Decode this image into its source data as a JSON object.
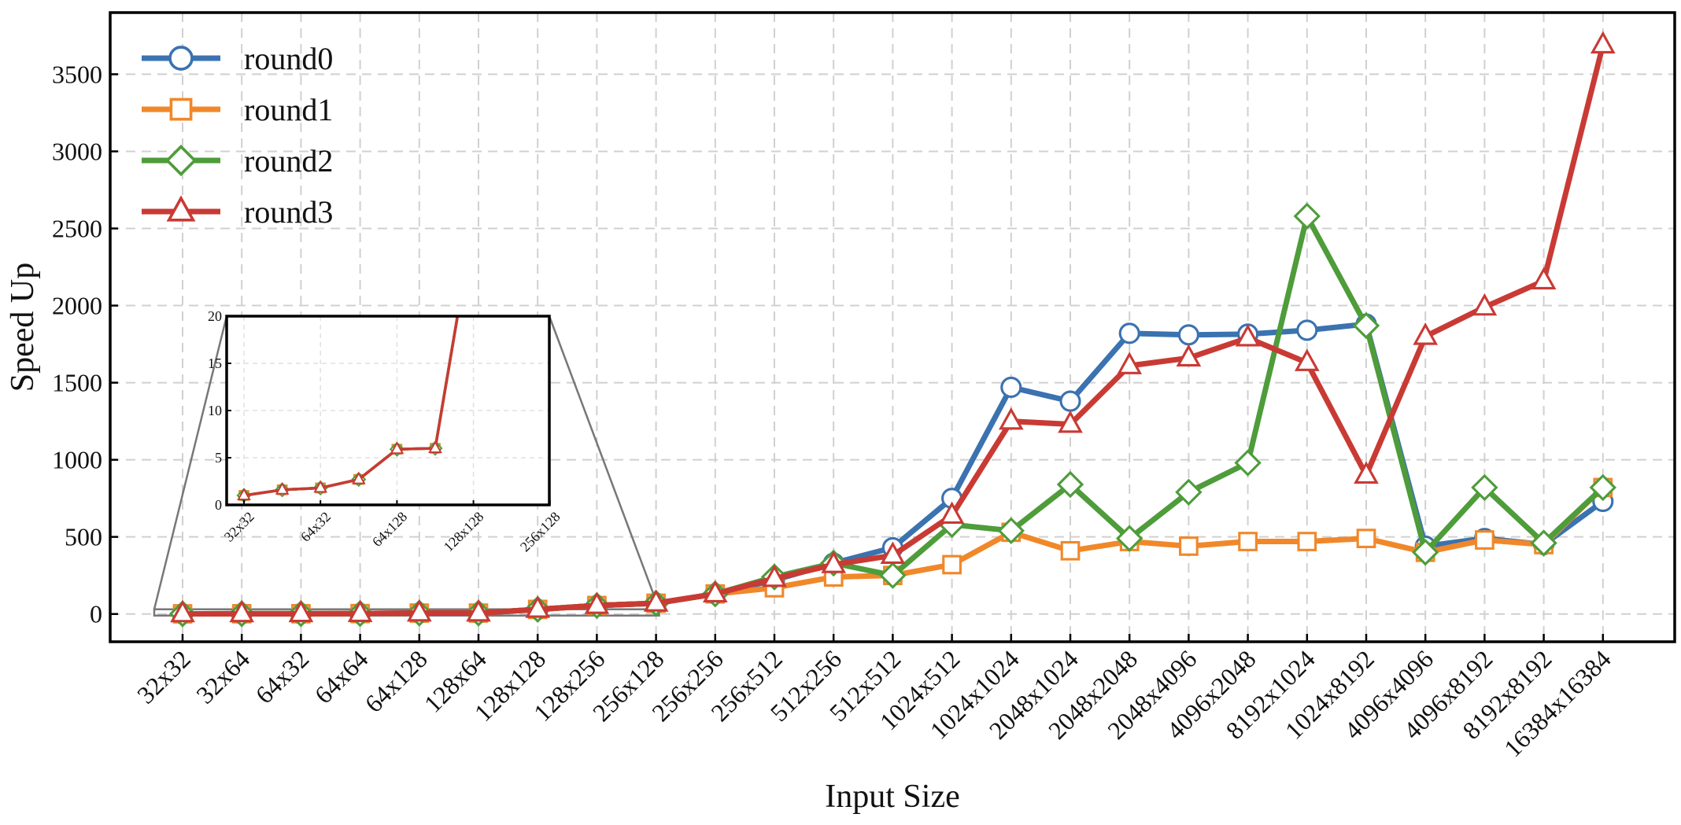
{
  "chart_data": {
    "type": "line",
    "title": "",
    "xlabel": "Input Size",
    "ylabel": "Speed Up",
    "categories": [
      "32x32",
      "32x64",
      "64x32",
      "64x64",
      "64x128",
      "128x64",
      "128x128",
      "128x256",
      "256x128",
      "256x256",
      "256x512",
      "512x256",
      "512x512",
      "1024x512",
      "1024x1024",
      "2048x1024",
      "2048x2048",
      "2048x4096",
      "4096x2048",
      "8192x1024",
      "1024x8192",
      "4096x4096",
      "4096x8192",
      "8192x8192",
      "16384x16384"
    ],
    "ylim": [
      -180,
      3900
    ],
    "yticks": [
      0,
      500,
      1000,
      1500,
      2000,
      2500,
      3000,
      3500
    ],
    "grid": true,
    "legend_position": "top-left",
    "series": [
      {
        "name": "round0",
        "marker": "circle",
        "color": "#3b72b0",
        "values": [
          1,
          1.6,
          1.8,
          2.7,
          5.9,
          6.0,
          30,
          55,
          70,
          130,
          220,
          330,
          430,
          750,
          1470,
          1380,
          1820,
          1810,
          1815,
          1840,
          1880,
          440,
          490,
          450,
          730
        ]
      },
      {
        "name": "round1",
        "marker": "square",
        "color": "#f0882a",
        "values": [
          1,
          1.6,
          1.8,
          2.7,
          5.9,
          6.0,
          30,
          55,
          70,
          130,
          170,
          240,
          250,
          320,
          530,
          410,
          470,
          440,
          470,
          470,
          490,
          400,
          480,
          450,
          820
        ]
      },
      {
        "name": "round2",
        "marker": "diamond",
        "color": "#4e9c3a",
        "values": [
          1,
          1.6,
          1.8,
          2.7,
          5.9,
          6.0,
          30,
          55,
          70,
          130,
          240,
          330,
          250,
          580,
          540,
          840,
          490,
          790,
          980,
          2580,
          1870,
          400,
          820,
          460,
          820
        ]
      },
      {
        "name": "round3",
        "marker": "triangle",
        "color": "#c93a34",
        "values": [
          1,
          1.6,
          1.8,
          2.7,
          5.9,
          6.0,
          30,
          55,
          70,
          130,
          230,
          320,
          380,
          640,
          1250,
          1230,
          1610,
          1660,
          1790,
          1630,
          900,
          1800,
          1990,
          2160,
          3690
        ]
      }
    ],
    "inset": {
      "categories": [
        "32x32",
        "32x64",
        "64x32",
        "64x64",
        "64x128",
        "128x64",
        "128x128",
        "128x256",
        "256x128"
      ],
      "tick_labels": [
        "32x32",
        "64x32",
        "64x128",
        "128x128",
        "256x128"
      ],
      "ylim": [
        0,
        20
      ],
      "yticks": [
        0,
        5,
        10,
        15,
        20
      ]
    }
  }
}
